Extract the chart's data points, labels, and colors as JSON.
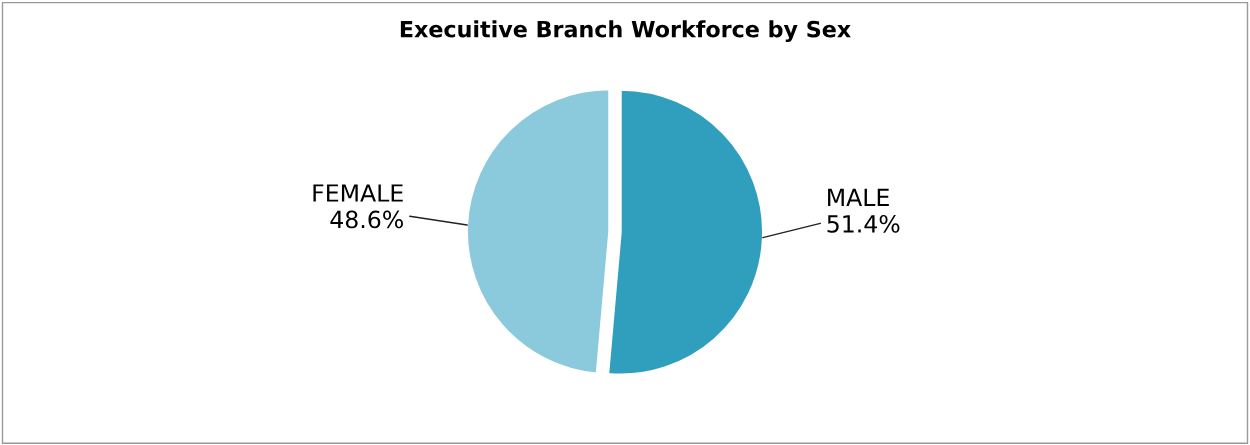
{
  "chart_data": {
    "type": "pie",
    "title": "Execuitive Branch Workforce by Sex",
    "categories": [
      "MALE",
      "FEMALE"
    ],
    "values": [
      51.4,
      48.6
    ],
    "value_labels": [
      "51.4%",
      "48.6%"
    ],
    "colors": [
      "#2f9fbd",
      "#8bc9dc"
    ],
    "legend": false
  }
}
